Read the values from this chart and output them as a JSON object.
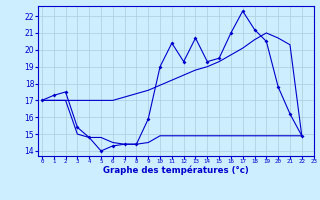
{
  "x_hours": [
    0,
    1,
    2,
    3,
    4,
    5,
    6,
    7,
    8,
    9,
    10,
    11,
    12,
    13,
    14,
    15,
    16,
    17,
    18,
    19,
    20,
    21,
    22
  ],
  "temp_zigzag": [
    17.0,
    17.3,
    17.5,
    15.4,
    14.8,
    14.0,
    14.3,
    14.4,
    14.4,
    15.9,
    19.0,
    20.4,
    19.3,
    20.7,
    19.3,
    19.5,
    21.0,
    22.3,
    21.2,
    20.5,
    17.8,
    16.2,
    14.9
  ],
  "temp_trend": [
    17.0,
    17.0,
    17.0,
    17.0,
    17.0,
    17.0,
    17.0,
    17.2,
    17.4,
    17.6,
    17.9,
    18.2,
    18.5,
    18.8,
    19.0,
    19.3,
    19.7,
    20.1,
    20.6,
    21.0,
    20.7,
    20.3,
    14.9
  ],
  "temp_min": [
    17.0,
    17.0,
    17.0,
    15.0,
    14.8,
    14.8,
    14.5,
    14.4,
    14.4,
    14.5,
    14.9,
    14.9,
    14.9,
    14.9,
    14.9,
    14.9,
    14.9,
    14.9,
    14.9,
    14.9,
    14.9,
    14.9,
    14.9
  ],
  "line_color": "#0000cc",
  "bg_color": "#cceeff",
  "grid_color": "#aaccdd",
  "xlabel": "Graphe des températures (°c)",
  "ylim": [
    13.7,
    22.6
  ],
  "xlim": [
    -0.3,
    23.0
  ],
  "yticks": [
    14,
    15,
    16,
    17,
    18,
    19,
    20,
    21,
    22
  ],
  "xticks": [
    0,
    1,
    2,
    3,
    4,
    5,
    6,
    7,
    8,
    9,
    10,
    11,
    12,
    13,
    14,
    15,
    16,
    17,
    18,
    19,
    20,
    21,
    22,
    23
  ]
}
